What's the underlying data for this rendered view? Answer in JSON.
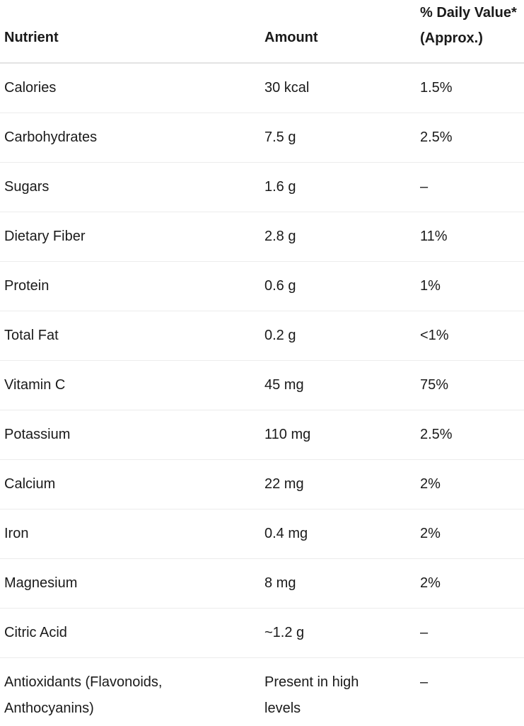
{
  "headers": {
    "nutrient": "Nutrient",
    "amount": "Amount",
    "daily_line1": "% Daily Value*",
    "daily_line2": "(Approx.)"
  },
  "rows": [
    {
      "nutrient": "Calories",
      "amount": "30 kcal",
      "daily": "1.5%"
    },
    {
      "nutrient": "Carbohydrates",
      "amount": "7.5 g",
      "daily": "2.5%"
    },
    {
      "nutrient": "Sugars",
      "amount": "1.6 g",
      "daily": "–"
    },
    {
      "nutrient": "Dietary Fiber",
      "amount": "2.8 g",
      "daily": "11%"
    },
    {
      "nutrient": "Protein",
      "amount": "0.6 g",
      "daily": "1%"
    },
    {
      "nutrient": "Total Fat",
      "amount": "0.2 g",
      "daily": "<1%"
    },
    {
      "nutrient": "Vitamin C",
      "amount": "45 mg",
      "daily": "75%"
    },
    {
      "nutrient": "Potassium",
      "amount": "110 mg",
      "daily": "2.5%"
    },
    {
      "nutrient": "Calcium",
      "amount": "22 mg",
      "daily": "2%"
    },
    {
      "nutrient": "Iron",
      "amount": "0.4 mg",
      "daily": "2%"
    },
    {
      "nutrient": "Magnesium",
      "amount": "8 mg",
      "daily": "2%"
    },
    {
      "nutrient": "Citric Acid",
      "amount": "~1.2 g",
      "daily": "–"
    },
    {
      "nutrient": "Antioxidants (Flavonoids, Anthocyanins)",
      "amount": "Present in high levels",
      "daily": "–"
    }
  ]
}
